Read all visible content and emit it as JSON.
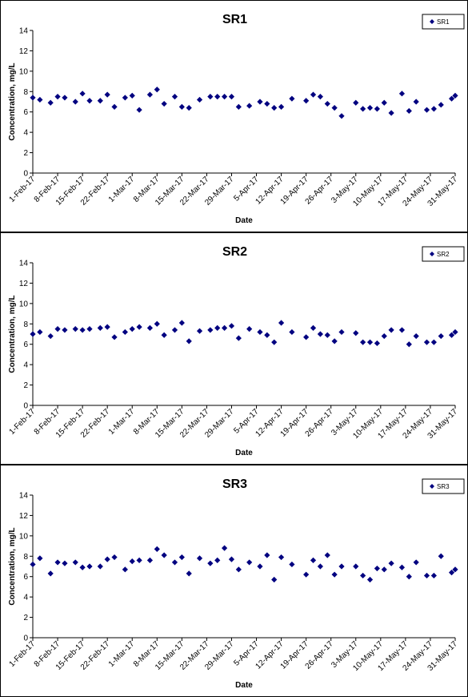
{
  "chart_data": [
    {
      "type": "scatter",
      "title": "SR1",
      "x_label": "Date",
      "y_label": "Concentration, mg/L",
      "x": [
        "1-Feb-17",
        "3-Feb-17",
        "6-Feb-17",
        "8-Feb-17",
        "10-Feb-17",
        "13-Feb-17",
        "15-Feb-17",
        "17-Feb-17",
        "20-Feb-17",
        "22-Feb-17",
        "24-Feb-17",
        "27-Feb-17",
        "1-Mar-17",
        "3-Mar-17",
        "6-Mar-17",
        "8-Mar-17",
        "10-Mar-17",
        "13-Mar-17",
        "15-Mar-17",
        "17-Mar-17",
        "20-Mar-17",
        "23-Mar-17",
        "25-Mar-17",
        "27-Mar-17",
        "29-Mar-17",
        "31-Mar-17",
        "3-Apr-17",
        "6-Apr-17",
        "8-Apr-17",
        "10-Apr-17",
        "12-Apr-17",
        "15-Apr-17",
        "19-Apr-17",
        "21-Apr-17",
        "23-Apr-17",
        "25-Apr-17",
        "27-Apr-17",
        "29-Apr-17",
        "3-May-17",
        "5-May-17",
        "7-May-17",
        "9-May-17",
        "11-May-17",
        "13-May-17",
        "16-May-17",
        "18-May-17",
        "20-May-17",
        "23-May-17",
        "25-May-17",
        "27-May-17",
        "30-May-17",
        "31-May-17"
      ],
      "series": [
        {
          "name": "SR1",
          "color": "#000080",
          "values": [
            7.4,
            7.2,
            6.9,
            7.5,
            7.4,
            7.0,
            7.8,
            7.1,
            7.1,
            7.7,
            6.5,
            7.4,
            7.6,
            6.2,
            7.7,
            8.2,
            6.8,
            7.5,
            6.5,
            6.4,
            7.2,
            7.5,
            7.5,
            7.5,
            7.5,
            6.5,
            6.6,
            7.0,
            6.8,
            6.4,
            6.5,
            7.3,
            7.1,
            7.7,
            7.5,
            6.8,
            6.4,
            5.6,
            6.9,
            6.3,
            6.4,
            6.3,
            6.9,
            5.9,
            7.8,
            6.1,
            7.0,
            6.2,
            6.3,
            6.7,
            7.3,
            7.6
          ]
        }
      ],
      "xlim": [
        "1-Feb-17",
        "31-May-17"
      ],
      "xticks": [
        "1-Feb-17",
        "8-Feb-17",
        "15-Feb-17",
        "22-Feb-17",
        "1-Mar-17",
        "8-Mar-17",
        "15-Mar-17",
        "22-Mar-17",
        "29-Mar-17",
        "5-Apr-17",
        "12-Apr-17",
        "19-Apr-17",
        "26-Apr-17",
        "3-May-17",
        "10-May-17",
        "17-May-17",
        "24-May-17",
        "31-May-17"
      ],
      "ylim": [
        0,
        14
      ],
      "yticks": [
        0,
        2,
        4,
        6,
        8,
        10,
        12,
        14
      ],
      "legend": "upper right"
    },
    {
      "type": "scatter",
      "title": "SR2",
      "x_label": "Date",
      "y_label": "Concentration, mg/L",
      "x": [
        "1-Feb-17",
        "3-Feb-17",
        "6-Feb-17",
        "8-Feb-17",
        "10-Feb-17",
        "13-Feb-17",
        "15-Feb-17",
        "17-Feb-17",
        "20-Feb-17",
        "22-Feb-17",
        "24-Feb-17",
        "27-Feb-17",
        "1-Mar-17",
        "3-Mar-17",
        "6-Mar-17",
        "8-Mar-17",
        "10-Mar-17",
        "13-Mar-17",
        "15-Mar-17",
        "17-Mar-17",
        "20-Mar-17",
        "23-Mar-17",
        "25-Mar-17",
        "27-Mar-17",
        "29-Mar-17",
        "31-Mar-17",
        "3-Apr-17",
        "6-Apr-17",
        "8-Apr-17",
        "10-Apr-17",
        "12-Apr-17",
        "15-Apr-17",
        "19-Apr-17",
        "21-Apr-17",
        "23-Apr-17",
        "25-Apr-17",
        "27-Apr-17",
        "29-Apr-17",
        "3-May-17",
        "5-May-17",
        "7-May-17",
        "9-May-17",
        "11-May-17",
        "13-May-17",
        "16-May-17",
        "18-May-17",
        "20-May-17",
        "23-May-17",
        "25-May-17",
        "27-May-17",
        "30-May-17",
        "31-May-17"
      ],
      "series": [
        {
          "name": "SR2",
          "color": "#000080",
          "values": [
            7.0,
            7.2,
            6.8,
            7.5,
            7.4,
            7.5,
            7.4,
            7.5,
            7.6,
            7.7,
            6.7,
            7.2,
            7.5,
            7.7,
            7.6,
            8.0,
            6.9,
            7.4,
            8.1,
            6.3,
            7.3,
            7.4,
            7.6,
            7.6,
            7.8,
            6.6,
            7.5,
            7.2,
            6.9,
            6.2,
            8.1,
            7.2,
            6.7,
            7.6,
            7.0,
            6.9,
            6.3,
            7.2,
            7.1,
            6.2,
            6.2,
            6.1,
            6.8,
            7.4,
            7.4,
            6.0,
            6.8,
            6.2,
            6.2,
            6.8,
            6.9,
            7.2
          ]
        }
      ],
      "xlim": [
        "1-Feb-17",
        "31-May-17"
      ],
      "xticks": [
        "1-Feb-17",
        "8-Feb-17",
        "15-Feb-17",
        "22-Feb-17",
        "1-Mar-17",
        "8-Mar-17",
        "15-Mar-17",
        "22-Mar-17",
        "29-Mar-17",
        "5-Apr-17",
        "12-Apr-17",
        "19-Apr-17",
        "26-Apr-17",
        "3-May-17",
        "10-May-17",
        "17-May-17",
        "24-May-17",
        "31-May-17"
      ],
      "ylim": [
        0,
        14
      ],
      "yticks": [
        0,
        2,
        4,
        6,
        8,
        10,
        12,
        14
      ],
      "legend": "upper right"
    },
    {
      "type": "scatter",
      "title": "SR3",
      "x_label": "Date",
      "y_label": "Concentration, mg/L",
      "x": [
        "1-Feb-17",
        "3-Feb-17",
        "6-Feb-17",
        "8-Feb-17",
        "10-Feb-17",
        "13-Feb-17",
        "15-Feb-17",
        "17-Feb-17",
        "20-Feb-17",
        "22-Feb-17",
        "24-Feb-17",
        "27-Feb-17",
        "1-Mar-17",
        "3-Mar-17",
        "6-Mar-17",
        "8-Mar-17",
        "10-Mar-17",
        "13-Mar-17",
        "15-Mar-17",
        "17-Mar-17",
        "20-Mar-17",
        "23-Mar-17",
        "25-Mar-17",
        "27-Mar-17",
        "29-Mar-17",
        "31-Mar-17",
        "3-Apr-17",
        "6-Apr-17",
        "8-Apr-17",
        "10-Apr-17",
        "12-Apr-17",
        "15-Apr-17",
        "19-Apr-17",
        "21-Apr-17",
        "23-Apr-17",
        "25-Apr-17",
        "27-Apr-17",
        "29-Apr-17",
        "3-May-17",
        "5-May-17",
        "7-May-17",
        "9-May-17",
        "11-May-17",
        "13-May-17",
        "16-May-17",
        "18-May-17",
        "20-May-17",
        "23-May-17",
        "25-May-17",
        "27-May-17",
        "30-May-17",
        "31-May-17"
      ],
      "series": [
        {
          "name": "SR3",
          "color": "#000080",
          "values": [
            7.2,
            7.8,
            6.3,
            7.4,
            7.3,
            7.4,
            6.9,
            7.0,
            7.0,
            7.7,
            7.9,
            6.7,
            7.5,
            7.6,
            7.6,
            8.7,
            8.1,
            7.4,
            7.9,
            6.3,
            7.8,
            7.3,
            7.6,
            8.8,
            7.7,
            6.7,
            7.4,
            7.0,
            8.1,
            5.7,
            7.9,
            7.2,
            6.2,
            7.6,
            7.0,
            8.1,
            6.2,
            7.0,
            7.0,
            6.1,
            5.7,
            6.8,
            6.7,
            7.3,
            6.9,
            6.0,
            7.4,
            6.1,
            6.1,
            8.0,
            6.4,
            6.7
          ]
        }
      ],
      "xlim": [
        "1-Feb-17",
        "31-May-17"
      ],
      "xticks": [
        "1-Feb-17",
        "8-Feb-17",
        "15-Feb-17",
        "22-Feb-17",
        "1-Mar-17",
        "8-Mar-17",
        "15-Mar-17",
        "22-Mar-17",
        "29-Mar-17",
        "5-Apr-17",
        "12-Apr-17",
        "19-Apr-17",
        "26-Apr-17",
        "3-May-17",
        "10-May-17",
        "17-May-17",
        "24-May-17",
        "31-May-17"
      ],
      "ylim": [
        0,
        14
      ],
      "yticks": [
        0,
        2,
        4,
        6,
        8,
        10,
        12,
        14
      ],
      "legend": "upper right"
    }
  ]
}
